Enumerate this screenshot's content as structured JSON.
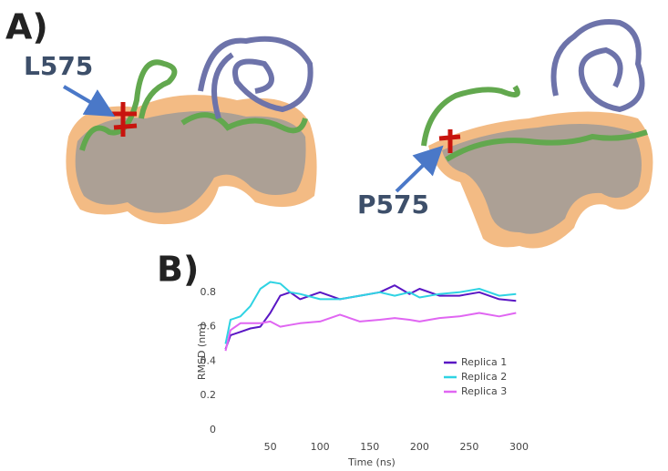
{
  "panel_labels": {
    "a": "A)",
    "b": "B)"
  },
  "residue_labels": {
    "left": "L575",
    "right": "P575"
  },
  "chart_data": {
    "type": "line",
    "x_label": "Time (ns)",
    "y_label": "RMSD (nm)",
    "x": [
      5,
      10,
      20,
      30,
      40,
      50,
      60,
      70,
      80,
      100,
      120,
      140,
      160,
      175,
      190,
      200,
      220,
      240,
      260,
      280,
      297
    ],
    "series": [
      {
        "name": "Replica 1",
        "color": "#5a16c4",
        "values": [
          0.47,
          0.55,
          0.57,
          0.59,
          0.6,
          0.68,
          0.78,
          0.8,
          0.76,
          0.8,
          0.76,
          0.78,
          0.8,
          0.84,
          0.79,
          0.82,
          0.78,
          0.78,
          0.8,
          0.76,
          0.75
        ]
      },
      {
        "name": "Replica 2",
        "color": "#2fd3e3",
        "values": [
          0.5,
          0.64,
          0.66,
          0.72,
          0.82,
          0.86,
          0.85,
          0.8,
          0.79,
          0.76,
          0.76,
          0.78,
          0.8,
          0.78,
          0.8,
          0.77,
          0.79,
          0.8,
          0.82,
          0.78,
          0.79
        ]
      },
      {
        "name": "Replica 3",
        "color": "#e066f2",
        "values": [
          0.46,
          0.58,
          0.62,
          0.62,
          0.62,
          0.63,
          0.6,
          0.61,
          0.62,
          0.63,
          0.67,
          0.63,
          0.64,
          0.65,
          0.64,
          0.63,
          0.65,
          0.66,
          0.68,
          0.66,
          0.68
        ]
      }
    ],
    "xlim": [
      0,
      305
    ],
    "xticks": [
      50,
      100,
      150,
      200,
      250,
      300
    ],
    "ylim": [
      0,
      0.91
    ],
    "yticks": [
      0,
      0.2,
      0.4,
      0.6,
      0.8
    ],
    "grid": false,
    "legend": "lower right"
  }
}
